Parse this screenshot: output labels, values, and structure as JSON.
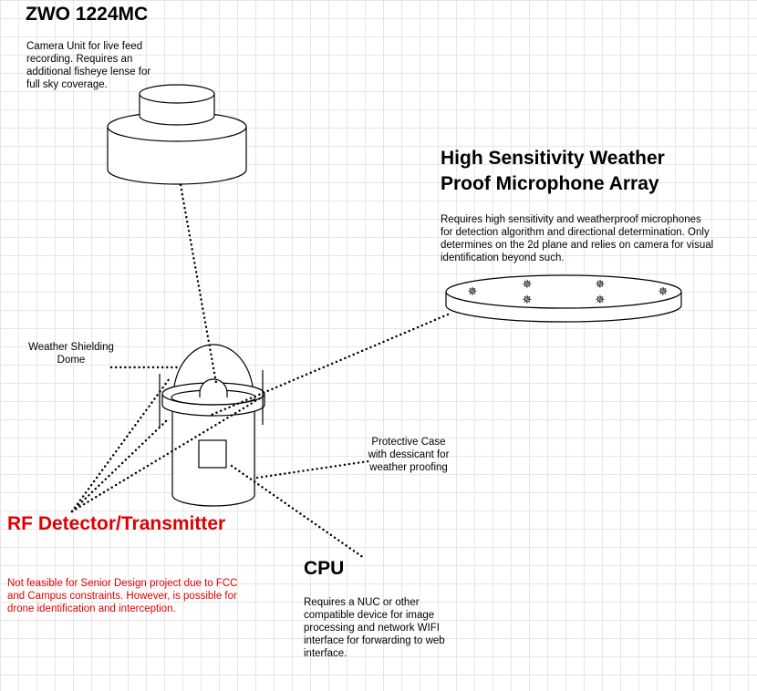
{
  "camera": {
    "title": "ZWO 1224MC",
    "description": "Camera Unit for live feed recording. Requires an additional fisheye lense for full sky coverage."
  },
  "microphone": {
    "title": "High Sensitivity Weather Proof Microphone Array",
    "description": "Requires high sensitivity and weatherproof microphones for detection algorithm and directional determination. Only determines on the 2d plane and relies on camera for visual identification beyond such."
  },
  "dome": {
    "label": "Weather Shielding Dome"
  },
  "case": {
    "label": "Protective Case with dessicant for weather proofing"
  },
  "rf": {
    "title": "RF Detector/Transmitter",
    "description": "Not feasible for Senior Design project due to FCC and Campus constraints. However, is possible for drone identification and interception.",
    "color": "#e00000"
  },
  "cpu": {
    "title": "CPU",
    "description": "Requires a NUC or other compatible device for image processing and network WIFI interface for forwarding to web interface."
  }
}
